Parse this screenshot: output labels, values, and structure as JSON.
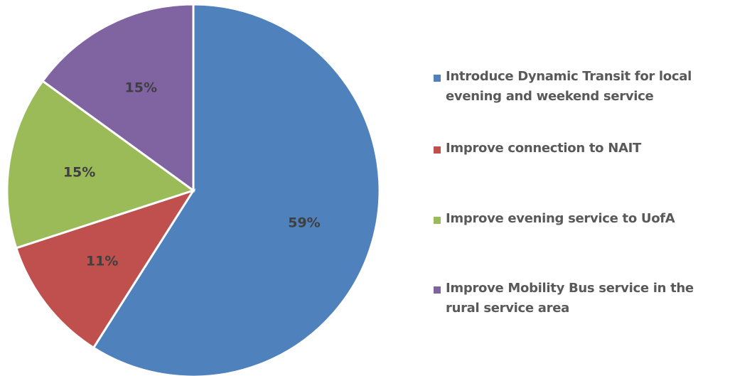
{
  "chart_data": {
    "type": "pie",
    "categories": [
      "Introduce Dynamic Transit for local evening and weekend service",
      "Improve connection to NAIT",
      "Improve evening service to UofA",
      "Improve Mobility Bus service in the rural service area"
    ],
    "values": [
      59,
      11,
      15,
      15
    ],
    "data_labels": [
      "59%",
      "11%",
      "15%",
      "15%"
    ],
    "colors": [
      "#4f81bd",
      "#c0504d",
      "#9bbb59",
      "#8064a2"
    ],
    "legend_position": "right",
    "legend": [
      {
        "line1": "Introduce Dynamic Transit for local",
        "line2": "evening and weekend service"
      },
      {
        "line1": "Improve connection to NAIT",
        "line2": ""
      },
      {
        "line1": "Improve evening service to UofA",
        "line2": ""
      },
      {
        "line1": "Improve Mobility Bus service in the",
        "line2": "rural service area"
      }
    ]
  }
}
